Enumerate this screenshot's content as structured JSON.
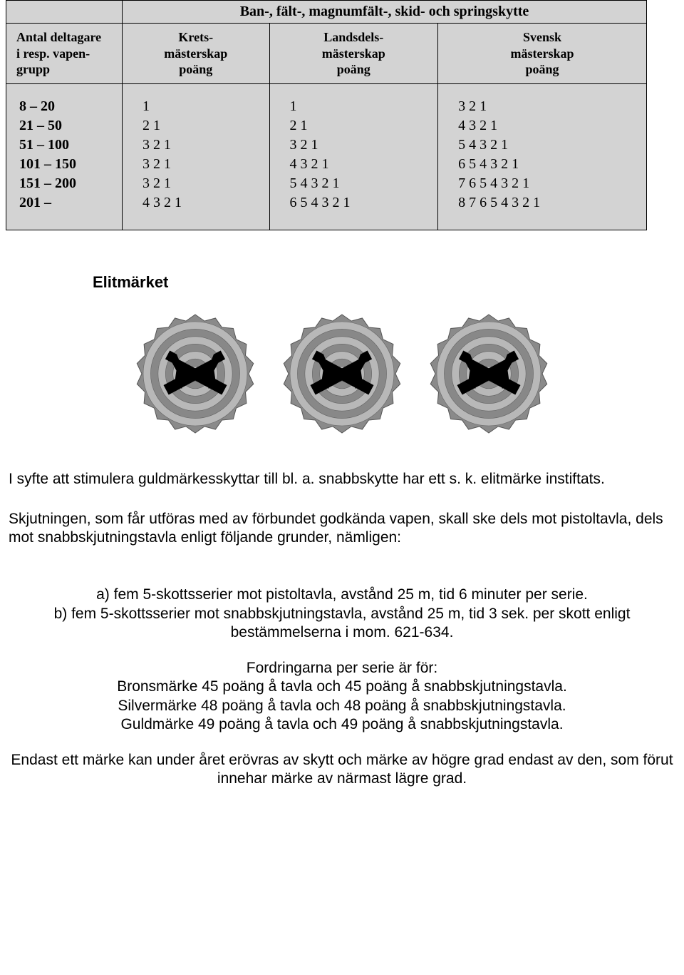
{
  "table": {
    "title": "Ban-, fält-, magnumfält-, skid- och springskytte",
    "headers": [
      "Antal deltagare\ni resp. vapen-\ngrupp",
      "Krets-\nmästerskap\npoäng",
      "Landsdels-\nmästerskap\npoäng",
      "Svensk\nmästerskap\npoäng"
    ],
    "col0": "8 – 20\n21 – 50\n51 – 100\n101 – 150\n151 – 200\n201 –",
    "col1": "1\n2 1\n3 2 1\n3 2 1\n3 2 1\n4 3 2 1",
    "col2": "1\n2 1\n3 2 1\n4 3 2 1\n5 4 3 2 1\n6 5 4 3 2 1",
    "col3": "3 2 1\n4 3 2 1\n5 4 3 2 1\n6 5 4 3 2 1\n7 6 5 4 3 2 1\n8 7 6 5 4 3 2 1",
    "background_color": "#d3d3d3",
    "border_color": "#000000"
  },
  "section_title": "Elitmärket",
  "badges": {
    "count": 3,
    "diameter": 170,
    "ring_count": 7,
    "outer_scallops": 36,
    "pistol_color": "#000000",
    "ring_color_light": "#b8b8b8",
    "ring_color_dark": "#888888",
    "ring_color_mid": "#a8a8a8",
    "scallop_color": "#8a8a8a",
    "background": "#ffffff"
  },
  "paragraphs": {
    "p1": "I syfte att stimulera guldmärkesskyttar till bl. a. snabbskytte har ett s. k. elitmärke instiftats.",
    "p2": "Skjutningen, som får utföras med av förbundet godkända vapen, skall ske dels mot pistoltavla, dels mot snabbskjutningstavla enligt följande grunder, nämligen:",
    "p3a": "a) fem 5-skottsserier mot pistoltavla, avstånd 25 m, tid 6 minuter per serie.",
    "p3b": "b) fem 5-skottsserier mot snabbskjutningstavla, avstånd 25 m, tid 3 sek. per skott enligt bestämmelserna i mom. 621-634.",
    "p4_line1": "Fordringarna per serie är för:",
    "p4_line2": "Bronsmärke 45 poäng å tavla och 45 poäng å snabbskjutningstavla.",
    "p4_line3": "Silvermärke 48 poäng å tavla och 48 poäng å snabbskjutningstavla.",
    "p4_line4": "Guldmärke 49 poäng å tavla och 49 poäng å snabbskjutningstavla.",
    "p5": "Endast ett märke kan under året erövras av skytt och märke av högre grad endast av den, som förut innehar märke av närmast lägre grad."
  }
}
